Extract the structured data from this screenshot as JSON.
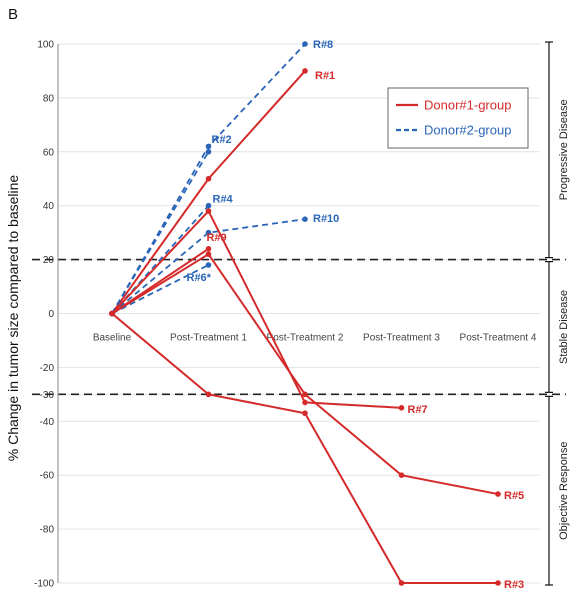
{
  "panel_label": "B",
  "chart_data": {
    "type": "line",
    "ylabel": "% Change in tumor size compared to baseline",
    "categories": [
      "Baseline",
      "Post-Treatment 1",
      "Post-Treatment 2",
      "Post-Treatment 3",
      "Post-Treatment 4"
    ],
    "ylim": [
      -100,
      100
    ],
    "yticks": [
      "100",
      "80",
      "60",
      "40",
      "20",
      "0",
      "-20",
      "-30",
      "-40",
      "-60",
      "-80",
      "-100"
    ],
    "ytick_values": [
      100,
      80,
      60,
      40,
      20,
      0,
      -20,
      -30,
      -40,
      -60,
      -80,
      -100
    ],
    "thresholds": [
      20,
      -30
    ],
    "legend": {
      "placement": "top-right",
      "entries": [
        "Donor#1-group",
        "Donor#2-group"
      ]
    },
    "groups": [
      {
        "name": "Donor#1-group",
        "color": "#d42a2a",
        "style": "solid"
      },
      {
        "name": "Donor#2-group",
        "color": "#2a66b8",
        "style": "dashed"
      }
    ],
    "series": [
      {
        "label": "R#8",
        "group": 1,
        "values": [
          0,
          62,
          100,
          null,
          null
        ]
      },
      {
        "label": "R#1",
        "group": 0,
        "values": [
          0,
          50,
          90,
          null,
          null
        ]
      },
      {
        "label": "R#2",
        "group": 1,
        "values": [
          0,
          60,
          null,
          null,
          null
        ]
      },
      {
        "label": "R#4",
        "group": 1,
        "values": [
          0,
          40,
          null,
          null,
          null
        ]
      },
      {
        "label": "R#10",
        "group": 1,
        "values": [
          0,
          30,
          35,
          null,
          null
        ]
      },
      {
        "label": "R#9",
        "group": 0,
        "values": [
          0,
          24,
          null,
          null,
          null
        ]
      },
      {
        "label": "R#6*",
        "group": 1,
        "values": [
          0,
          18,
          null,
          null,
          null
        ]
      },
      {
        "label": "R#7",
        "group": 0,
        "values": [
          0,
          38,
          -33,
          -35,
          null
        ]
      },
      {
        "label": "R#5",
        "group": 0,
        "values": [
          0,
          22,
          -30,
          -60,
          -67
        ]
      },
      {
        "label": "R#3",
        "group": 0,
        "values": [
          0,
          -30,
          -37,
          -100,
          -100
        ]
      }
    ],
    "regions": [
      "Progressive Disease",
      "Stable Disease",
      "Objective Response"
    ]
  }
}
